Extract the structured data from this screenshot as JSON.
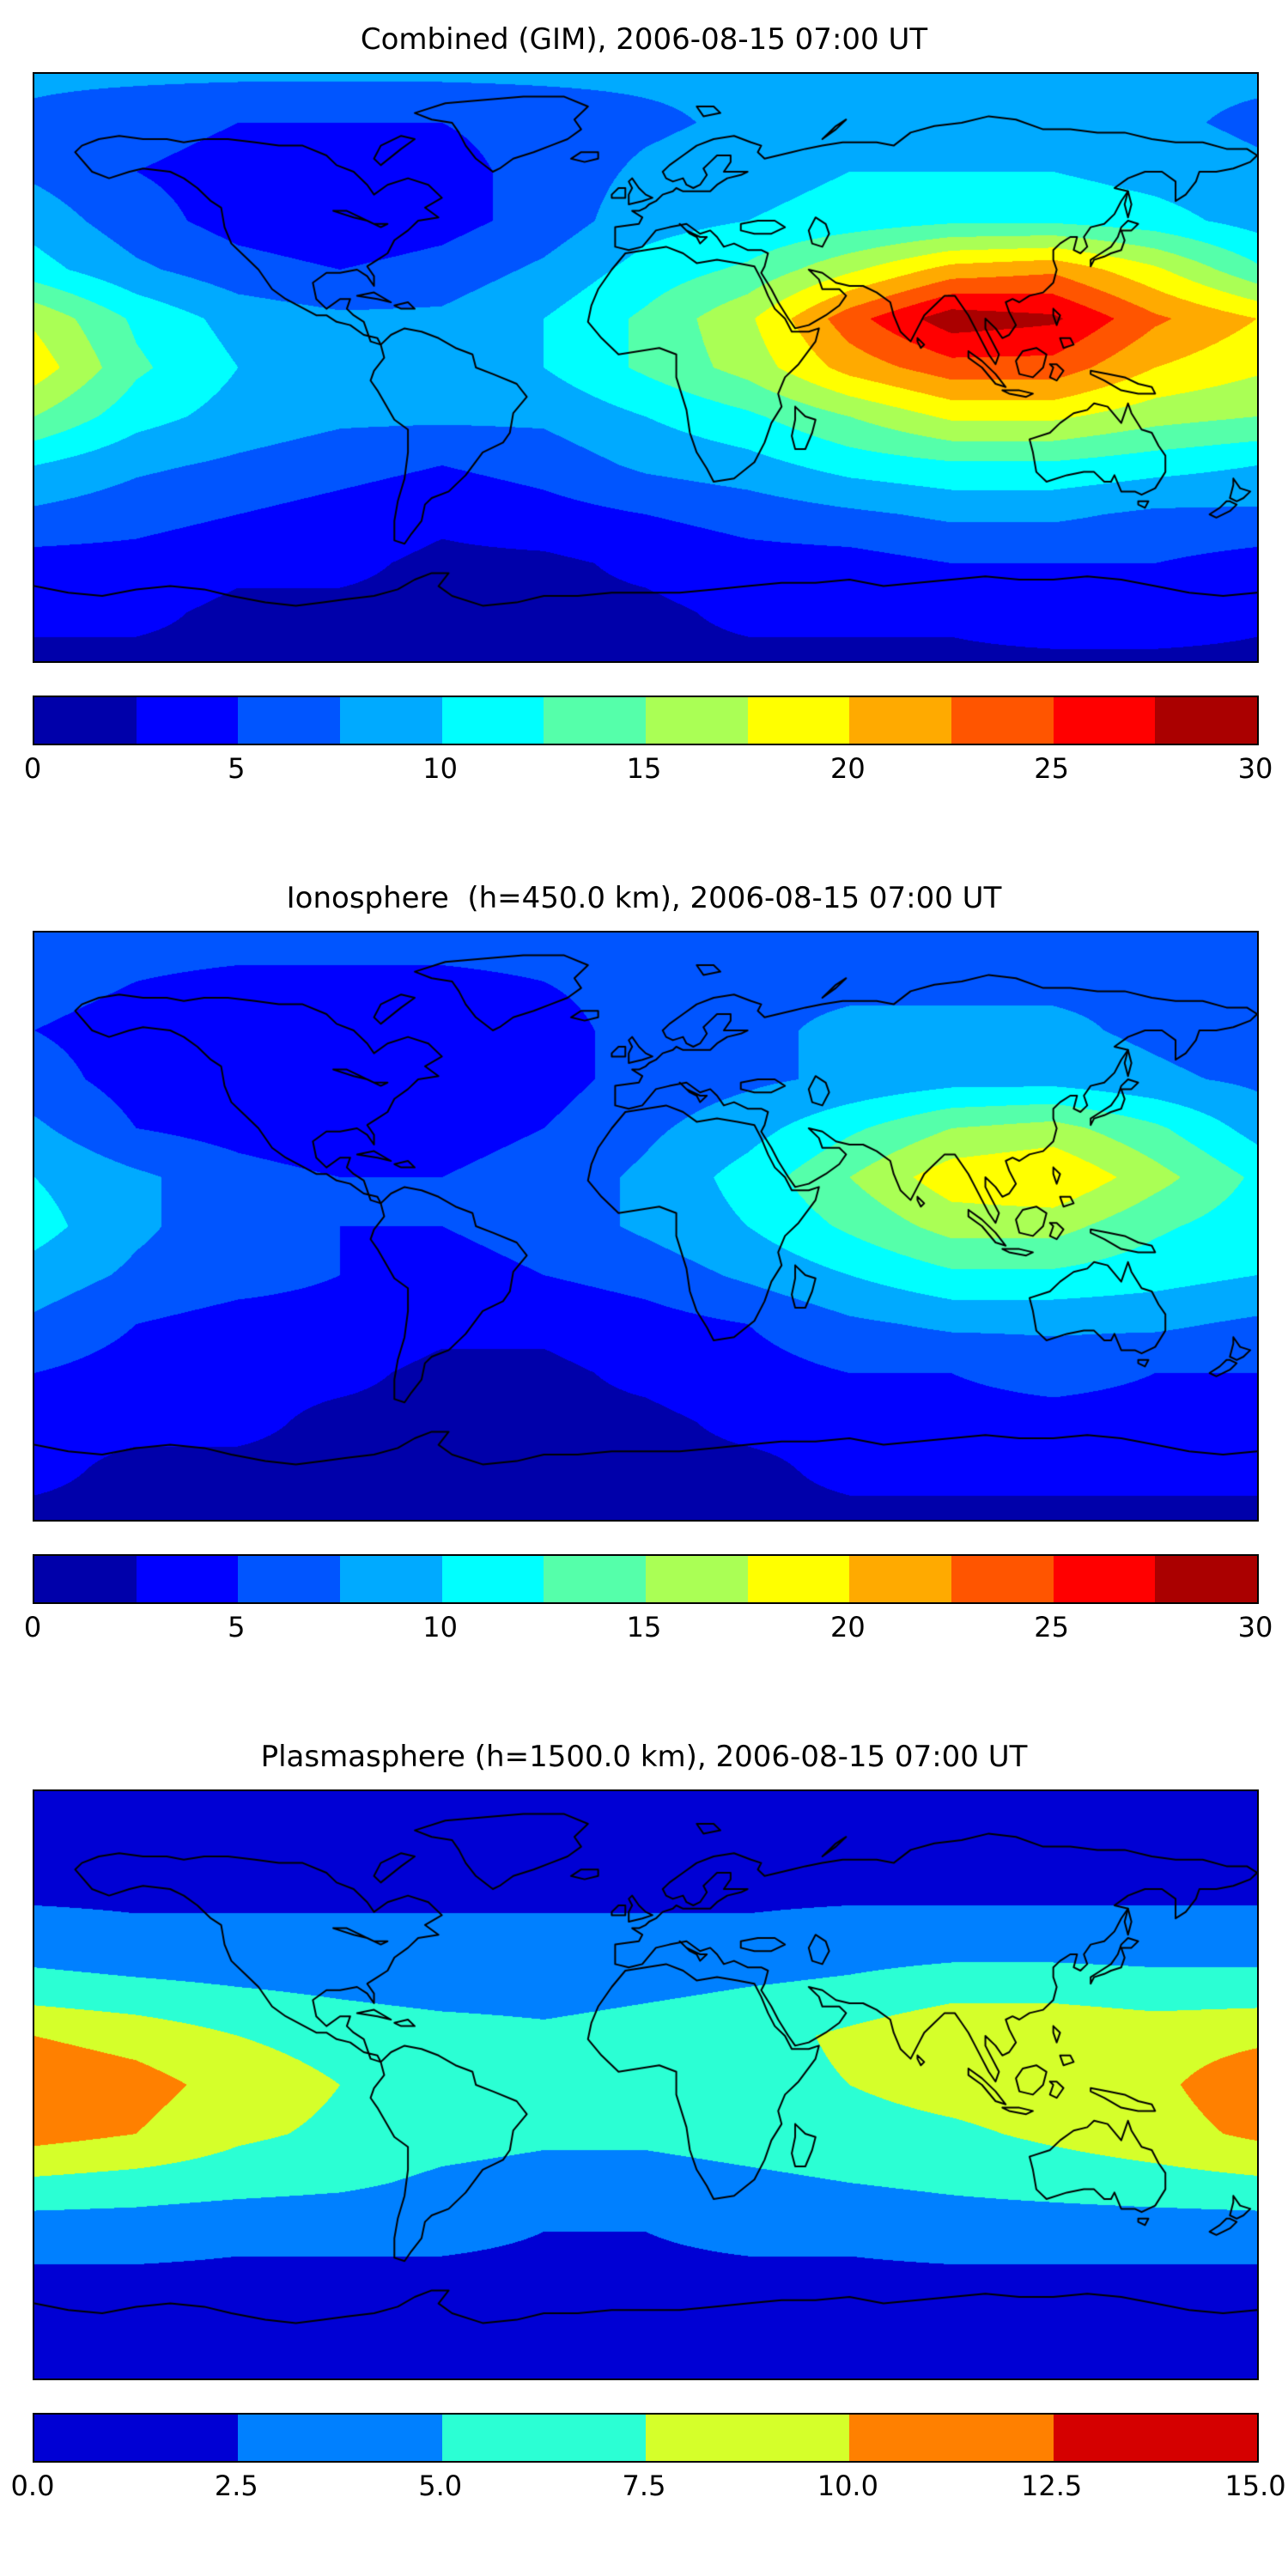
{
  "figure": {
    "background": "#ffffff",
    "text_color": "#000000"
  },
  "chart_data": [
    {
      "type": "heatmap",
      "title": "Combined (GIM), 2006-08-15 07:00 UT",
      "colormap": "jet",
      "legend_position": "bottom-colorbar",
      "levels": {
        "min": 0,
        "max": 30,
        "step": 2.5
      },
      "colorbar_ticks": [
        "0",
        "5",
        "10",
        "15",
        "20",
        "25",
        "30"
      ],
      "colorbar_tick_values": [
        0,
        5,
        10,
        15,
        20,
        25,
        30
      ],
      "map_extent": {
        "lon": [
          -180,
          180
        ],
        "lat": [
          -90,
          90
        ]
      },
      "grid": {
        "lon": [
          -180,
          -150,
          -120,
          -90,
          -60,
          -30,
          0,
          30,
          60,
          90,
          120,
          150,
          180
        ],
        "lat": [
          90,
          75,
          60,
          45,
          30,
          15,
          0,
          -15,
          -30,
          -45,
          -60,
          -75,
          -90
        ],
        "values": [
          [
            8,
            8,
            8,
            8,
            8,
            8,
            8,
            8,
            8,
            8,
            8,
            8,
            8
          ],
          [
            7,
            6,
            5,
            5,
            5,
            6,
            7,
            8,
            9,
            9,
            9,
            8,
            7
          ],
          [
            7,
            5,
            4,
            3,
            4,
            6,
            8,
            9,
            10,
            10,
            10,
            9,
            8
          ],
          [
            9,
            6,
            4,
            3,
            4,
            6,
            9,
            10,
            11,
            12,
            12,
            11,
            9
          ],
          [
            11,
            8,
            6,
            5,
            6,
            8,
            11,
            13,
            17,
            21,
            22,
            18,
            13
          ],
          [
            17,
            12,
            9,
            8,
            8,
            10,
            13,
            17,
            24,
            29,
            28,
            23,
            20
          ],
          [
            19,
            13,
            10,
            9,
            9,
            10,
            13,
            16,
            21,
            24,
            24,
            20,
            18
          ],
          [
            15,
            11,
            9,
            8,
            8,
            8,
            10,
            12,
            15,
            18,
            18,
            16,
            15
          ],
          [
            10,
            8,
            7,
            6,
            5,
            6,
            8,
            9,
            11,
            12,
            12,
            11,
            10
          ],
          [
            7,
            6,
            5,
            4,
            3,
            4,
            5,
            6,
            7,
            8,
            8,
            7,
            7
          ],
          [
            4,
            4,
            3,
            3,
            2,
            2,
            3,
            4,
            4,
            5,
            5,
            5,
            4
          ],
          [
            3,
            3,
            2,
            2,
            2,
            2,
            2,
            3,
            3,
            3,
            4,
            4,
            3
          ],
          [
            2,
            2,
            2,
            2,
            2,
            2,
            2,
            2,
            2,
            2,
            2,
            2,
            2
          ]
        ]
      }
    },
    {
      "type": "heatmap",
      "title": "Ionosphere  (h=450.0 km), 2006-08-15 07:00 UT",
      "colormap": "jet",
      "legend_position": "bottom-colorbar",
      "levels": {
        "min": 0,
        "max": 30,
        "step": 2.5
      },
      "colorbar_ticks": [
        "0",
        "5",
        "10",
        "15",
        "20",
        "25",
        "30"
      ],
      "colorbar_tick_values": [
        0,
        5,
        10,
        15,
        20,
        25,
        30
      ],
      "map_extent": {
        "lon": [
          -180,
          180
        ],
        "lat": [
          -90,
          90
        ]
      },
      "grid": {
        "lon": [
          -180,
          -150,
          -120,
          -90,
          -60,
          -30,
          0,
          30,
          60,
          90,
          120,
          150,
          180
        ],
        "lat": [
          90,
          75,
          60,
          45,
          30,
          15,
          0,
          -15,
          -30,
          -45,
          -60,
          -75,
          -90
        ],
        "values": [
          [
            7,
            7,
            7,
            7,
            7,
            7,
            7,
            7,
            7,
            7,
            7,
            7,
            7
          ],
          [
            6,
            5,
            4,
            4,
            4,
            5,
            6,
            7,
            7,
            7,
            7,
            7,
            6
          ],
          [
            5,
            4,
            3,
            3,
            3,
            4,
            6,
            7,
            8,
            8,
            8,
            7,
            6
          ],
          [
            6,
            4,
            3,
            3,
            3,
            4,
            6,
            7,
            8,
            9,
            9,
            8,
            7
          ],
          [
            8,
            5,
            4,
            3,
            4,
            5,
            7,
            9,
            12,
            15,
            16,
            13,
            9
          ],
          [
            10,
            8,
            6,
            5,
            5,
            6,
            8,
            11,
            15,
            19,
            20,
            16,
            12
          ],
          [
            11,
            8,
            6,
            5,
            5,
            6,
            8,
            10,
            13,
            16,
            16,
            13,
            11
          ],
          [
            9,
            7,
            6,
            5,
            4,
            5,
            6,
            8,
            10,
            12,
            12,
            11,
            10
          ],
          [
            7,
            5,
            4,
            4,
            3,
            3,
            4,
            5,
            7,
            8,
            8,
            8,
            7
          ],
          [
            5,
            4,
            3,
            3,
            2,
            2,
            3,
            4,
            5,
            5,
            6,
            5,
            5
          ],
          [
            3,
            3,
            3,
            2,
            2,
            2,
            2,
            3,
            3,
            4,
            4,
            4,
            3
          ],
          [
            3,
            2,
            2,
            2,
            2,
            2,
            2,
            2,
            3,
            3,
            3,
            3,
            3
          ],
          [
            2,
            2,
            2,
            2,
            2,
            2,
            2,
            2,
            2,
            2,
            2,
            2,
            2
          ]
        ]
      }
    },
    {
      "type": "heatmap",
      "title": "Plasmasphere (h=1500.0 km), 2006-08-15 07:00 UT",
      "colormap": "jet",
      "legend_position": "bottom-colorbar",
      "levels": {
        "min": 0,
        "max": 15,
        "step": 2.5
      },
      "colorbar_ticks": [
        "0.0",
        "2.5",
        "5.0",
        "7.5",
        "10.0",
        "12.5",
        "15.0"
      ],
      "colorbar_tick_values": [
        0,
        2.5,
        5,
        7.5,
        10,
        12.5,
        15
      ],
      "map_extent": {
        "lon": [
          -180,
          180
        ],
        "lat": [
          -90,
          90
        ]
      },
      "grid": {
        "lon": [
          -180,
          -150,
          -120,
          -90,
          -60,
          -30,
          0,
          30,
          60,
          90,
          120,
          150,
          180
        ],
        "lat": [
          90,
          75,
          60,
          45,
          30,
          15,
          0,
          -15,
          -30,
          -45,
          -60,
          -75,
          -90
        ],
        "values": [
          [
            1,
            1,
            1,
            1,
            1,
            1,
            1,
            1,
            1,
            1,
            1,
            1,
            1
          ],
          [
            1.5,
            1.5,
            1.5,
            1.5,
            1.5,
            1.5,
            1.5,
            1.5,
            1.5,
            1.5,
            1.5,
            1.5,
            1.5
          ],
          [
            2,
            2,
            2,
            2,
            2,
            2,
            2,
            2,
            2,
            2,
            2,
            2,
            2
          ],
          [
            3.5,
            3,
            3,
            3,
            3,
            3,
            3,
            3,
            3.5,
            3.5,
            3.5,
            3.5,
            3.5
          ],
          [
            6,
            5.5,
            5,
            4.5,
            4,
            4,
            4.5,
            5,
            5.5,
            6.5,
            6.5,
            6,
            6
          ],
          [
            10,
            9,
            7.5,
            6.5,
            6,
            5.5,
            6,
            6.5,
            8,
            9.5,
            9.5,
            9,
            9.5
          ],
          [
            12,
            11,
            9,
            7.5,
            6.5,
            6,
            6,
            6.5,
            7.5,
            8.5,
            9,
            9.5,
            11.5
          ],
          [
            11,
            10,
            8,
            7,
            6,
            5.5,
            5.5,
            6,
            6.5,
            7,
            8,
            9,
            10.5
          ],
          [
            7,
            6.5,
            6,
            5.5,
            4.5,
            4,
            4,
            4.5,
            5,
            5.5,
            6,
            6.5,
            7
          ],
          [
            3.5,
            3.5,
            3,
            3,
            3,
            2.5,
            2.5,
            3,
            3,
            3.5,
            3.5,
            3.5,
            3.5
          ],
          [
            2,
            2,
            2,
            2,
            2,
            2,
            2,
            2,
            2,
            2,
            2,
            2,
            2
          ],
          [
            1.5,
            1.5,
            1.5,
            1.5,
            1.5,
            1.5,
            1.5,
            1.5,
            1.5,
            1.5,
            1.5,
            1.5,
            1.5
          ],
          [
            1,
            1,
            1,
            1,
            1,
            1,
            1,
            1,
            1,
            1,
            1,
            1,
            1
          ]
        ]
      }
    }
  ]
}
